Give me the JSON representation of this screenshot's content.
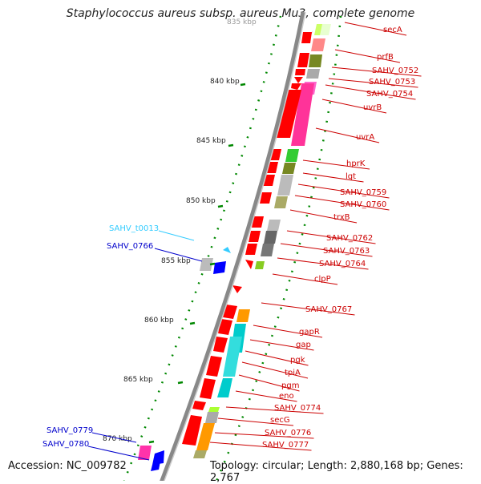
{
  "title": "Staphylococcus aureus subsp. aureus Mu3, complete genome",
  "footer": {
    "accession": "Accession: NC_009782",
    "summary": "Topology: circular; Length: 2,880,168 bp; Genes: 2,767"
  },
  "ticks": [
    "840 kbp",
    "845 kbp",
    "850 kbp",
    "855 kbp",
    "860 kbp",
    "865 kbp",
    "870 kbp"
  ],
  "top_tick_partial": "835 kbp",
  "genes_right": [
    "secA",
    "prfB",
    "SAHV_0752",
    "SAHV_0753",
    "SAHV_0754",
    "uvrB",
    "uvrA",
    "hprK",
    "lgt",
    "SAHV_0759",
    "SAHV_0760",
    "trxB",
    "SAHV_0762",
    "SAHV_0763",
    "SAHV_0764",
    "clpP",
    "SAHV_0767",
    "gapR",
    "gap",
    "pgk",
    "tpiA",
    "pgm",
    "eno",
    "SAHV_0774",
    "secG",
    "SAHV_0776",
    "SAHV_0777"
  ],
  "genes_left": [
    {
      "label": "SAHV_t0013",
      "color": "#33ccff"
    },
    {
      "label": "SAHV_0766",
      "color": "#0000cc"
    },
    {
      "label": "SAHV_0779",
      "color": "#0000cc"
    },
    {
      "label": "SAHV_0780",
      "color": "#0000cc"
    }
  ],
  "colors": {
    "forward_cds": "#ff0000",
    "reverse_cds": "#0000ff",
    "trna": "#33ccff",
    "backbone": "#888888",
    "tick": "#008800",
    "label_right": "#cc0000"
  }
}
